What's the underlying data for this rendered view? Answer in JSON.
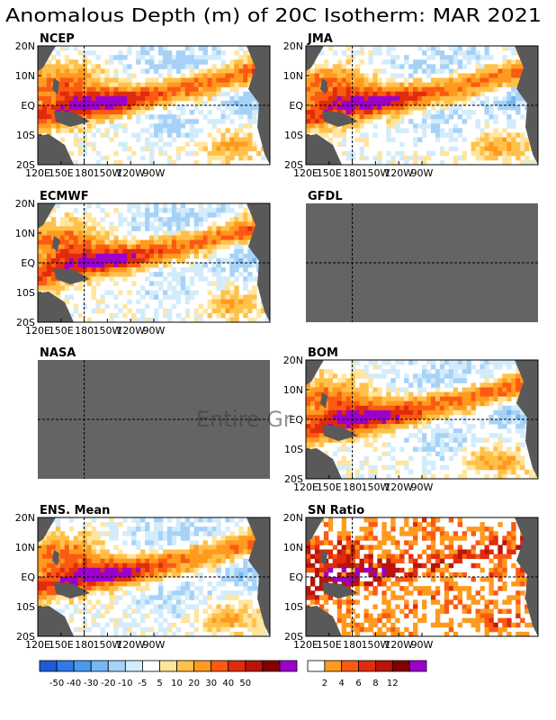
{
  "title": "Anomalous Depth (m) of 20C Isotherm: MAR 2021",
  "chart_data": {
    "type": "heatmap",
    "lat_labels": [
      "20N",
      "10N",
      "EQ",
      "10S",
      "20S"
    ],
    "lon_labels": [
      "120E",
      "150E",
      "180",
      "150W",
      "120W",
      "90W"
    ],
    "panels": [
      {
        "key": "ncep",
        "label": "NCEP",
        "available": true,
        "show_lat": true,
        "show_lon": true,
        "scale": "anomaly",
        "seed": 11
      },
      {
        "key": "jma",
        "label": "JMA",
        "available": true,
        "show_lat": true,
        "show_lon": true,
        "scale": "anomaly",
        "seed": 23
      },
      {
        "key": "ecmwf",
        "label": "ECMWF",
        "available": true,
        "show_lat": true,
        "show_lon": true,
        "scale": "anomaly",
        "seed": 37
      },
      {
        "key": "gfdl",
        "label": "GFDL",
        "available": false,
        "show_lat": false,
        "show_lon": false,
        "scale": "anomaly",
        "seed": 0
      },
      {
        "key": "nasa",
        "label": "NASA",
        "available": false,
        "show_lat": false,
        "show_lon": false,
        "scale": "anomaly",
        "seed": 0
      },
      {
        "key": "bom",
        "label": "BOM",
        "available": true,
        "show_lat": true,
        "show_lon": true,
        "scale": "anomaly",
        "seed": 53
      },
      {
        "key": "ens",
        "label": "ENS. Mean",
        "available": true,
        "show_lat": true,
        "show_lon": true,
        "scale": "anomaly",
        "seed": 67
      },
      {
        "key": "sn",
        "label": "SN Ratio",
        "available": true,
        "show_lat": true,
        "show_lon": true,
        "scale": "sn",
        "seed": 79
      }
    ],
    "missing_text": "Entire Gr",
    "colorbar_anomaly": {
      "colors": [
        "#1f5bd6",
        "#2f7ae8",
        "#4a98f0",
        "#76b6f3",
        "#a6d2f8",
        "#d3ecfb",
        "#ffffff",
        "#ffe59e",
        "#ffc14a",
        "#ff9a1f",
        "#fb5a12",
        "#e02c0c",
        "#b8140a",
        "#820000",
        "#9b00cc"
      ],
      "ticks": [
        "-50",
        "-40",
        "-30",
        "-20",
        "-10",
        "-5",
        "5",
        "10",
        "20",
        "30",
        "40",
        "50"
      ]
    },
    "colorbar_sn": {
      "colors": [
        "#ffffff",
        "#ff9a1f",
        "#fb5a12",
        "#e02c0c",
        "#b8140a",
        "#820000",
        "#9b00cc"
      ],
      "ticks": [
        "2",
        "4",
        "6",
        "8",
        "12"
      ]
    },
    "land_color": "#595959",
    "missing_color": "#646464"
  }
}
